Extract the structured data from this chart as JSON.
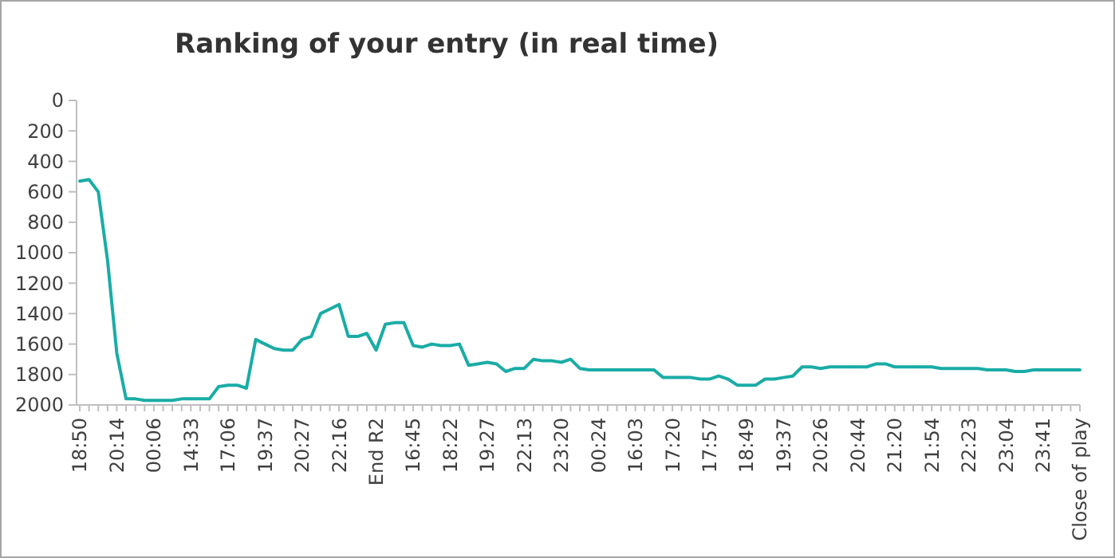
{
  "chart_data": {
    "type": "line",
    "title": "Ranking of your entry (in real time)",
    "categories": [
      "18:50",
      null,
      null,
      null,
      "20:14",
      null,
      null,
      null,
      "00:06",
      null,
      null,
      null,
      "14:33",
      null,
      null,
      null,
      "17:06",
      null,
      null,
      null,
      "19:37",
      null,
      null,
      null,
      "20:27",
      null,
      null,
      null,
      "22:16",
      null,
      null,
      null,
      "End R2",
      null,
      null,
      null,
      "16:45",
      null,
      null,
      null,
      "18:22",
      null,
      null,
      null,
      "19:27",
      null,
      null,
      null,
      "22:13",
      null,
      null,
      null,
      "23:20",
      null,
      null,
      null,
      "00:24",
      null,
      null,
      null,
      "16:03",
      null,
      null,
      null,
      "17:20",
      null,
      null,
      null,
      "17:57",
      null,
      null,
      null,
      "18:49",
      null,
      null,
      null,
      "19:37",
      null,
      null,
      null,
      "20:26",
      null,
      null,
      null,
      "20:44",
      null,
      null,
      null,
      "21:20",
      null,
      null,
      null,
      "21:54",
      null,
      null,
      null,
      "22:23",
      null,
      null,
      null,
      "23:04",
      null,
      null,
      null,
      "23:41",
      null,
      null,
      null,
      "Close of play"
    ],
    "series": [
      {
        "color": "#1aaca6",
        "values": [
          530,
          520,
          600,
          1050,
          1660,
          1960,
          1960,
          1970,
          1970,
          1970,
          1970,
          1960,
          1960,
          1960,
          1960,
          1880,
          1870,
          1870,
          1890,
          1570,
          1600,
          1630,
          1640,
          1640,
          1570,
          1550,
          1400,
          1370,
          1340,
          1550,
          1550,
          1530,
          1640,
          1470,
          1460,
          1460,
          1610,
          1620,
          1600,
          1610,
          1610,
          1600,
          1740,
          1730,
          1720,
          1730,
          1780,
          1760,
          1760,
          1700,
          1710,
          1710,
          1720,
          1700,
          1760,
          1770,
          1770,
          1770,
          1770,
          1770,
          1770,
          1770,
          1770,
          1820,
          1820,
          1820,
          1820,
          1830,
          1830,
          1810,
          1830,
          1870,
          1870,
          1870,
          1830,
          1830,
          1820,
          1810,
          1750,
          1750,
          1760,
          1750,
          1750,
          1750,
          1750,
          1750,
          1730,
          1730,
          1750,
          1750,
          1750,
          1750,
          1750,
          1760,
          1760,
          1760,
          1760,
          1760,
          1770,
          1770,
          1770,
          1780,
          1780,
          1770,
          1770,
          1770,
          1770,
          1770,
          1770
        ]
      }
    ],
    "ylim": [
      2000,
      0
    ],
    "yticks": [
      0,
      200,
      400,
      600,
      800,
      1000,
      1200,
      1400,
      1600,
      1800,
      2000
    ],
    "grid": false,
    "marker": "none",
    "line_style": "solid"
  }
}
